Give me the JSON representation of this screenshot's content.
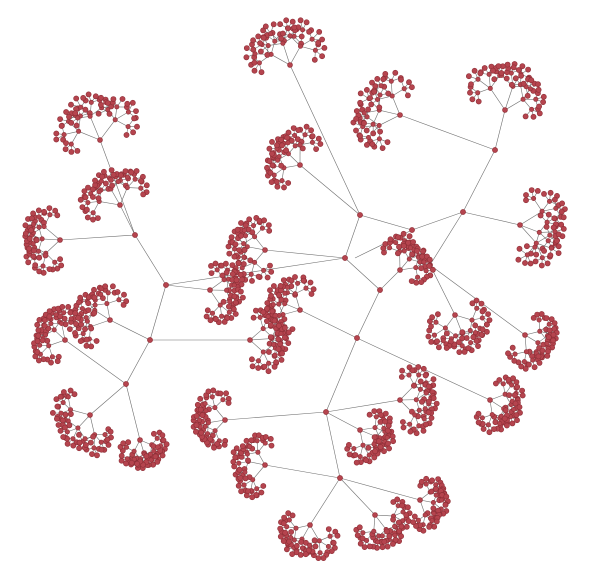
{
  "diagram": {
    "type": "radial-tree",
    "node_color": "#b5444e",
    "node_stroke": "#8e2f37",
    "edge_color": "#555555",
    "background": "#ffffff",
    "hubs": 7,
    "depth": 5
  }
}
